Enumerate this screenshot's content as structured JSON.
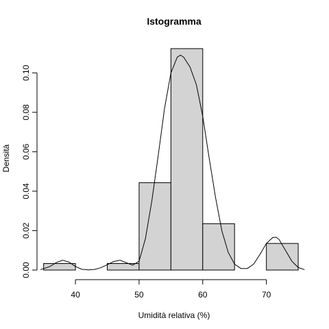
{
  "chart_data": {
    "type": "histogram",
    "title": "Istogramma",
    "xlabel": "Umidità relativa (%)",
    "ylabel": "Densità",
    "bins": [
      {
        "start": 35,
        "end": 40,
        "density": 0.0033
      },
      {
        "start": 40,
        "end": 45,
        "density": 0.0
      },
      {
        "start": 45,
        "end": 50,
        "density": 0.0033
      },
      {
        "start": 50,
        "end": 55,
        "density": 0.0443
      },
      {
        "start": 55,
        "end": 60,
        "density": 0.1123
      },
      {
        "start": 60,
        "end": 65,
        "density": 0.0235
      },
      {
        "start": 65,
        "end": 70,
        "density": 0.0
      },
      {
        "start": 70,
        "end": 75,
        "density": 0.0135
      }
    ],
    "density_curve": {
      "x": [
        34.5,
        36,
        37,
        38,
        39,
        40,
        41,
        42,
        43,
        44,
        45,
        46,
        47,
        48,
        49,
        50,
        51,
        52,
        53,
        54,
        55,
        56,
        56.5,
        57,
        58,
        59,
        60,
        61,
        62,
        63,
        64,
        65,
        66,
        67,
        68,
        69,
        70,
        71,
        71.5,
        72,
        73,
        74,
        75,
        76
      ],
      "y": [
        0.0002,
        0.0018,
        0.0038,
        0.005,
        0.004,
        0.0018,
        0.0004,
        0.0001,
        0.0003,
        0.0012,
        0.0027,
        0.0043,
        0.005,
        0.0037,
        0.0025,
        0.0045,
        0.016,
        0.035,
        0.058,
        0.082,
        0.1,
        0.108,
        0.109,
        0.108,
        0.103,
        0.094,
        0.078,
        0.057,
        0.037,
        0.02,
        0.009,
        0.003,
        0.0008,
        0.0008,
        0.003,
        0.008,
        0.0135,
        0.0165,
        0.0167,
        0.0155,
        0.01,
        0.0045,
        0.0013,
        0.0002
      ]
    },
    "x_ticks": [
      40,
      50,
      60,
      70
    ],
    "y_ticks": [
      0.0,
      0.02,
      0.04,
      0.06,
      0.08,
      0.1
    ],
    "y_tick_labels": [
      "0.00",
      "0.02",
      "0.04",
      "0.06",
      "0.08",
      "0.10"
    ],
    "xlim": [
      34.5,
      76.5
    ],
    "ylim": [
      0,
      0.1168
    ],
    "grid": false
  }
}
